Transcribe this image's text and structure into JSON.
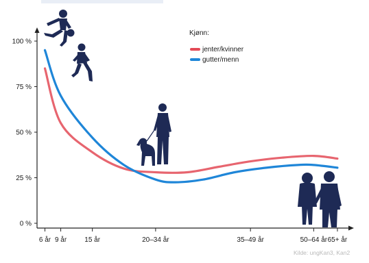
{
  "chart_data": {
    "type": "line",
    "title": "",
    "xlabel": "",
    "ylabel": "",
    "categories": [
      "6 år",
      "9 år",
      "15 år",
      "20–34 år",
      "35–49 år",
      "50–64 år",
      "65+ år"
    ],
    "ylim": [
      0,
      100
    ],
    "yticks": [
      "0 %",
      "25 %",
      "50 %",
      "75 %",
      "100 %"
    ],
    "ytick_values": [
      0,
      25,
      50,
      75,
      100
    ],
    "grid": false,
    "legend": {
      "title": "Kjønn:",
      "position": "top-center"
    },
    "series": [
      {
        "name": "jenter/kvinner",
        "color": "#e34a56",
        "points": [
          [
            0,
            85
          ],
          [
            2,
            55
          ],
          [
            6,
            39
          ],
          [
            10,
            30
          ],
          [
            14,
            28
          ],
          [
            18,
            28
          ],
          [
            22,
            31
          ],
          [
            26,
            34
          ],
          [
            30,
            36
          ],
          [
            34,
            37
          ],
          [
            37,
            35.5
          ]
        ]
      },
      {
        "name": "gutter/menn",
        "color": "#1f86d8",
        "points": [
          [
            0,
            95
          ],
          [
            2,
            70
          ],
          [
            6,
            47
          ],
          [
            10,
            32
          ],
          [
            14,
            24
          ],
          [
            16.5,
            22.5
          ],
          [
            20,
            24
          ],
          [
            24,
            28
          ],
          [
            28,
            30.5
          ],
          [
            32,
            32
          ],
          [
            34,
            32
          ],
          [
            37,
            30.5
          ]
        ]
      }
    ],
    "x_tick_positions": [
      0,
      2,
      6,
      14,
      26,
      34,
      37
    ],
    "x_range": [
      -1,
      39
    ],
    "source": "Kilde: ungKan3, Kan2"
  },
  "figures": [
    {
      "name": "boy-with-ball-figure"
    },
    {
      "name": "running-girl-figure"
    },
    {
      "name": "person-with-dog-figure"
    },
    {
      "name": "elderly-couple-figure"
    }
  ]
}
